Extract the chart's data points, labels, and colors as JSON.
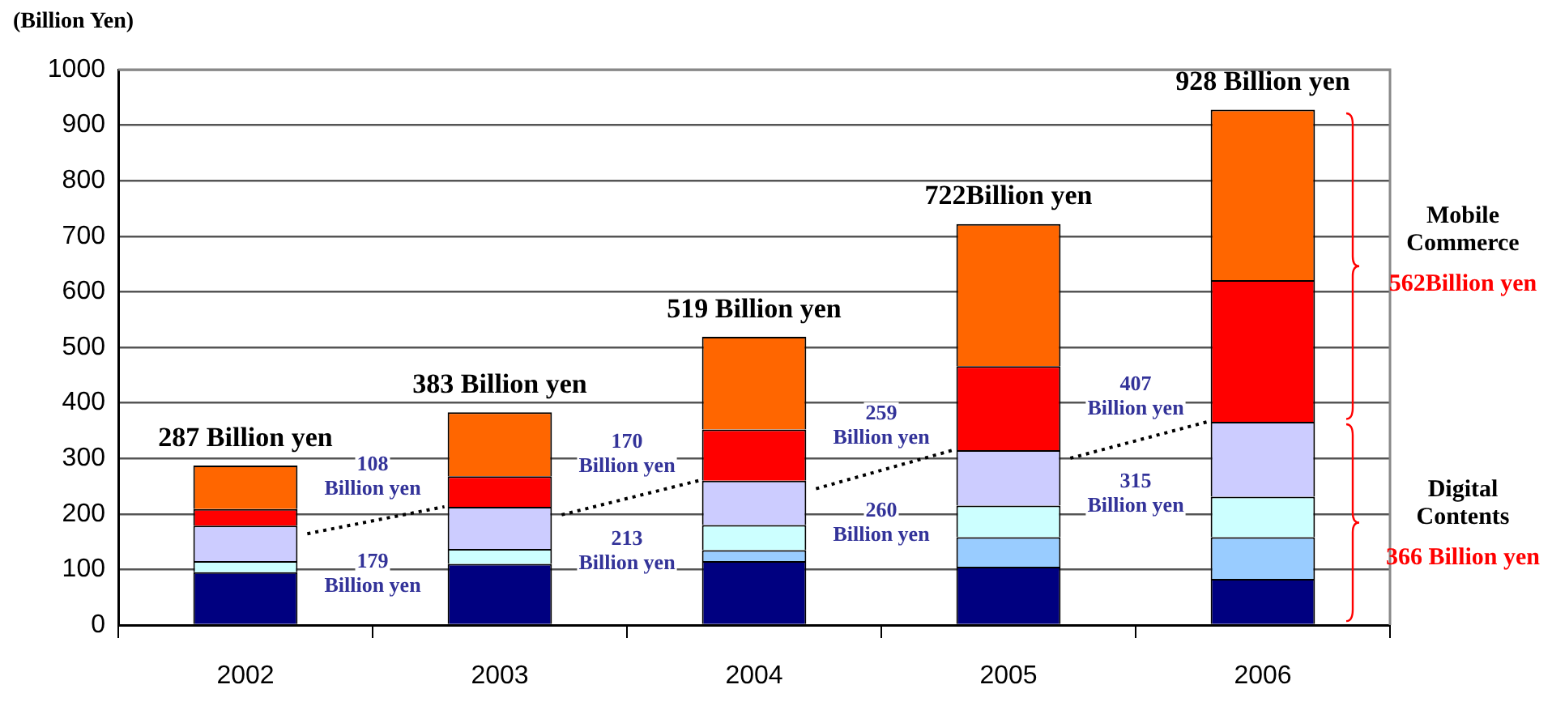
{
  "chart_data": {
    "type": "bar",
    "stacked": true,
    "ylabel": "(Billion Yen)",
    "categories": [
      "2002",
      "2003",
      "2004",
      "2005",
      "2006"
    ],
    "series": [
      {
        "color": "#000080",
        "values": [
          95,
          110,
          115,
          105,
          83
        ]
      },
      {
        "color": "#99ccff",
        "values": [
          null,
          null,
          20,
          53,
          75
        ]
      },
      {
        "color": "#ccffff",
        "values": [
          20,
          27,
          45,
          57,
          73
        ]
      },
      {
        "color": "#ccccff",
        "values": [
          64,
          76,
          80,
          100,
          135
        ]
      },
      {
        "color": "#ff0000",
        "values": [
          30,
          55,
          92,
          151,
          255
        ]
      },
      {
        "color": "#ff6600",
        "values": [
          78,
          115,
          167,
          256,
          307
        ]
      }
    ],
    "totals": [
      "287 Billion yen",
      "383 Billion yen",
      "519 Billion yen",
      "722Billion yen",
      "928 Billion yen"
    ],
    "annotations": [
      "108 Billion yen",
      "179 Billion yen",
      "170 Billion yen",
      "213 Billion yen",
      "259 Billion yen",
      "260 Billion yen",
      "407 Billion yen",
      "315 Billion yen",
      "Mobile Commerce",
      "562Billion yen",
      "Digital Contents",
      "366 Billion yen"
    ],
    "ylim": [
      0,
      1000
    ],
    "yticks": [
      0,
      100,
      200,
      300,
      400,
      500,
      600,
      700,
      800,
      900,
      1000
    ],
    "grid": "y"
  }
}
